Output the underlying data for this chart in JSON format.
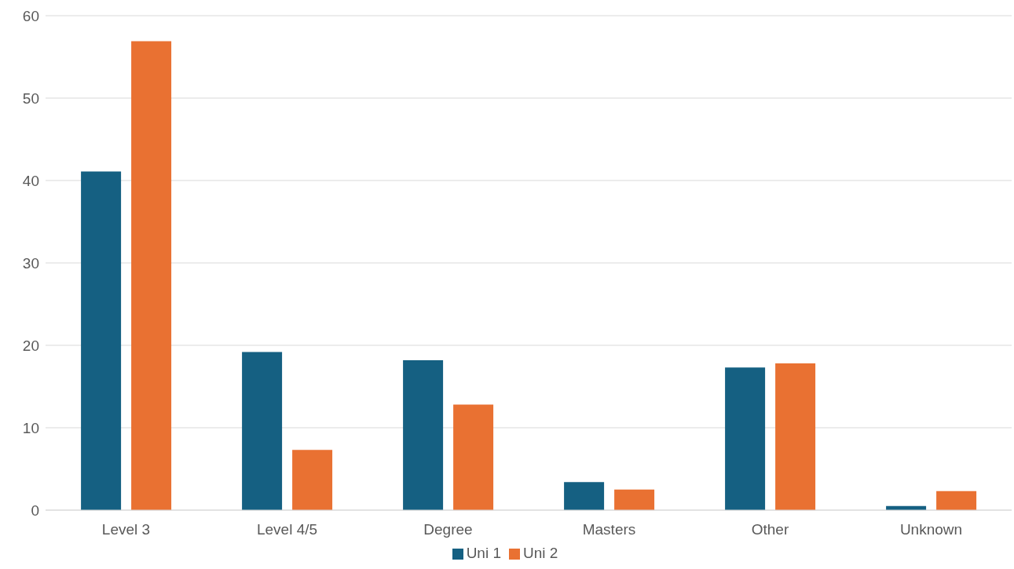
{
  "chart_data": {
    "type": "bar",
    "categories": [
      "Level 3",
      "Level 4/5",
      "Degree",
      "Masters",
      "Other",
      "Unknown"
    ],
    "series": [
      {
        "name": "Uni 1",
        "color": "#156082",
        "values": [
          41.1,
          19.2,
          18.2,
          3.4,
          17.3,
          0.5
        ]
      },
      {
        "name": "Uni 2",
        "color": "#e97132",
        "values": [
          56.9,
          7.3,
          12.8,
          2.5,
          17.8,
          2.3
        ]
      }
    ],
    "ylim": [
      0,
      60
    ],
    "yticks": [
      0,
      10,
      20,
      30,
      40,
      50,
      60
    ],
    "grid": "y",
    "legend": "bottom"
  }
}
